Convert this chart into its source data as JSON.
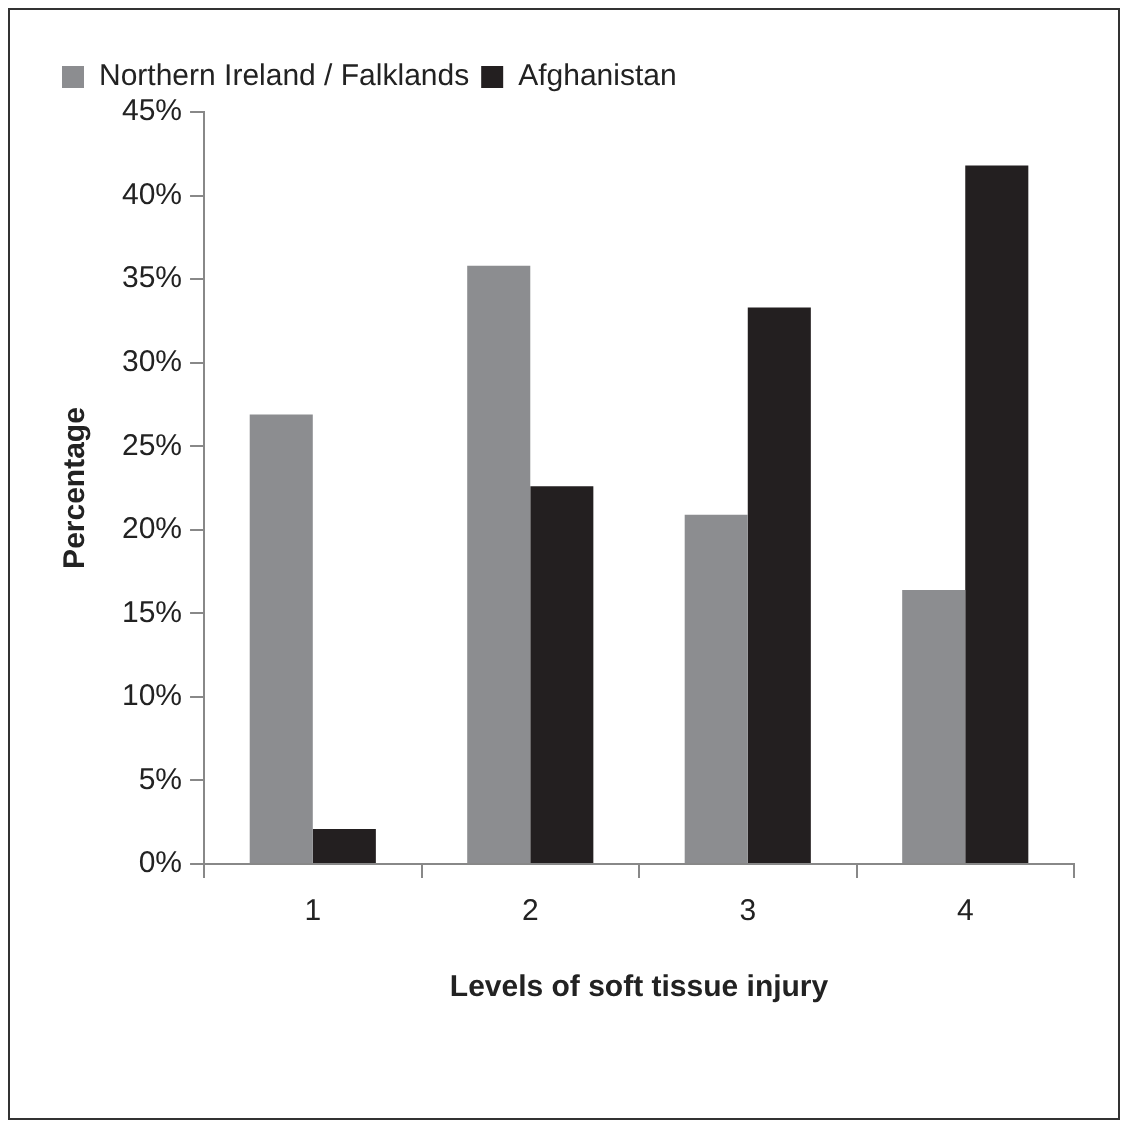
{
  "chart_data": {
    "type": "bar",
    "xlabel": "Levels of soft tissue injury",
    "ylabel": "Percentage",
    "categories": [
      "1",
      "2",
      "3",
      "4"
    ],
    "series": [
      {
        "name": "Northern Ireland / Falklands",
        "color": "#8c8d90",
        "values": [
          26.9,
          35.8,
          20.9,
          16.4
        ]
      },
      {
        "name": "Afghanistan",
        "color": "#231f20",
        "values": [
          2.1,
          22.6,
          33.3,
          41.8
        ]
      }
    ],
    "ylim": [
      0,
      45
    ],
    "yticks": [
      {
        "value": 0,
        "label": "0%"
      },
      {
        "value": 5,
        "label": "5%"
      },
      {
        "value": 10,
        "label": "10%"
      },
      {
        "value": 15,
        "label": "15%"
      },
      {
        "value": 20,
        "label": "20%"
      },
      {
        "value": 25,
        "label": "25%"
      },
      {
        "value": 30,
        "label": "30%"
      },
      {
        "value": 35,
        "label": "35%"
      },
      {
        "value": 40,
        "label": "40%"
      },
      {
        "value": 45,
        "label": "45%"
      }
    ],
    "grid": false,
    "legend": "top left"
  }
}
